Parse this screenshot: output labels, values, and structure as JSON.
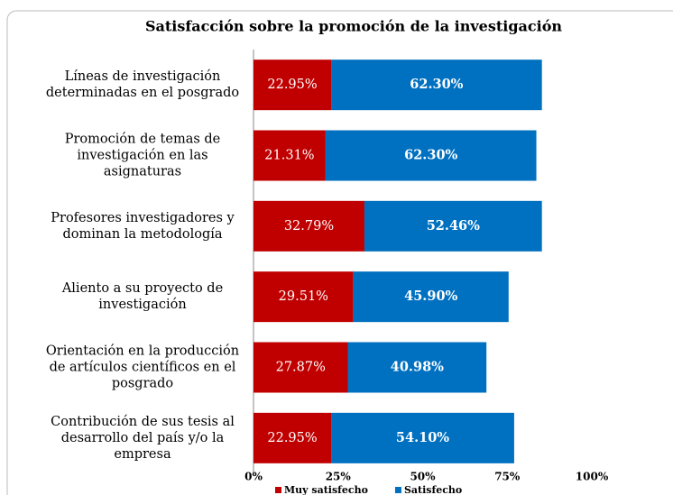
{
  "chart_data": {
    "type": "stacked_barh",
    "title": "Satisfacción sobre la promoción de la investigación",
    "categories": [
      [
        "Líneas de investigación",
        "determinadas en el posgrado"
      ],
      [
        "Promoción de temas de",
        "investigación en las",
        "asignaturas"
      ],
      [
        "Profesores investigadores y",
        "dominan la metodología"
      ],
      [
        "Aliento a su proyecto de",
        "investigación"
      ],
      [
        "Orientación en la producción",
        "de artículos científicos en el",
        "posgrado"
      ],
      [
        "Contribución de sus tesis al",
        "desarrollo del país y/o la",
        "empresa"
      ]
    ],
    "series": [
      {
        "name": "Muy satisfecho",
        "color": "#c00000",
        "values": [
          22.95,
          21.31,
          32.79,
          29.51,
          27.87,
          22.95
        ],
        "value_labels": [
          "22.95%",
          "21.31%",
          "32.79%",
          "29.51%",
          "27.87%",
          "22.95%"
        ]
      },
      {
        "name": "Satisfecho",
        "color": "#0070c0",
        "values": [
          62.3,
          62.3,
          52.46,
          45.9,
          40.98,
          54.1
        ],
        "value_labels": [
          "62.30%",
          "62.30%",
          "52.46%",
          "45.90%",
          "40.98%",
          "54.10%"
        ]
      }
    ],
    "xlim": [
      0,
      100
    ],
    "xticks": [
      {
        "value": 0,
        "label": "0%"
      },
      {
        "value": 25,
        "label": "25%"
      },
      {
        "value": 50,
        "label": "50%"
      },
      {
        "value": 75,
        "label": "75%"
      },
      {
        "value": 100,
        "label": "100%"
      }
    ],
    "legend": "bottom"
  }
}
